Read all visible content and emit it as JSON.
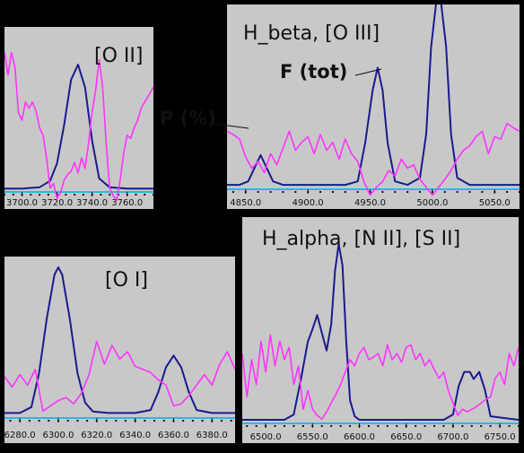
{
  "annotations": {
    "f_tot": "F (tot)",
    "p_pct": "P (%)"
  },
  "colors": {
    "flux": "#1a1a8c",
    "polarization": "#ff33ff",
    "baseline": "#22bbe6",
    "panel_bg": "#c8c8c8"
  },
  "chart_data": [
    {
      "type": "line",
      "title": "[O II]",
      "xlim": [
        3690,
        3775
      ],
      "xticks": [
        "3700.0",
        "3720.0",
        "3740.0",
        "3760.0"
      ],
      "xtick_values": [
        3700,
        3720,
        3740,
        3760
      ],
      "series": [
        {
          "role": "flux",
          "x": [
            3690,
            3700,
            3710,
            3716,
            3720,
            3724,
            3728,
            3732,
            3736,
            3740,
            3744,
            3750,
            3760,
            3775
          ],
          "y": [
            0.02,
            0.02,
            0.03,
            0.08,
            0.22,
            0.52,
            0.88,
            1.0,
            0.82,
            0.4,
            0.1,
            0.03,
            0.02,
            0.02
          ]
        },
        {
          "role": "polarization",
          "x": [
            3690,
            3692,
            3694,
            3696,
            3698,
            3700,
            3702,
            3704,
            3706,
            3708,
            3710,
            3712,
            3714,
            3716,
            3718,
            3720,
            3722,
            3724,
            3726,
            3728,
            3730,
            3732,
            3734,
            3736,
            3738,
            3740,
            3742,
            3744,
            3746,
            3748,
            3750,
            3752,
            3754,
            3756,
            3758,
            3760,
            3762,
            3764,
            3766,
            3768,
            3770,
            3772,
            3775
          ],
          "y": [
            0.95,
            0.8,
            0.95,
            0.85,
            0.55,
            0.5,
            0.62,
            0.58,
            0.62,
            0.56,
            0.45,
            0.4,
            0.25,
            0.05,
            0.08,
            -0.02,
            0.02,
            0.1,
            0.14,
            0.16,
            0.22,
            0.15,
            0.25,
            0.18,
            0.35,
            0.55,
            0.7,
            0.9,
            0.72,
            0.35,
            0.05,
            0.0,
            -0.03,
            0.1,
            0.28,
            0.4,
            0.38,
            0.45,
            0.5,
            0.58,
            0.62,
            0.66,
            0.72
          ]
        }
      ]
    },
    {
      "type": "line",
      "title": "H_beta,  [O III]",
      "xlim": [
        4835,
        5070
      ],
      "xticks": [
        "4850.0",
        "4900.0",
        "4950.0",
        "5000.0",
        "5050.0"
      ],
      "xtick_values": [
        4850,
        4900,
        4950,
        5000,
        5050
      ],
      "series": [
        {
          "role": "flux",
          "x": [
            4835,
            4845,
            4852,
            4858,
            4862,
            4866,
            4872,
            4880,
            4900,
            4930,
            4940,
            4946,
            4952,
            4956,
            4960,
            4964,
            4970,
            4980,
            4990,
            4995,
            4999,
            5003,
            5007,
            5011,
            5015,
            5020,
            5030,
            5070
          ],
          "y": [
            0.01,
            0.01,
            0.03,
            0.12,
            0.18,
            0.12,
            0.03,
            0.01,
            0.01,
            0.01,
            0.03,
            0.25,
            0.55,
            0.68,
            0.55,
            0.25,
            0.03,
            0.01,
            0.05,
            0.3,
            0.8,
            1.05,
            1.05,
            0.8,
            0.3,
            0.05,
            0.01,
            0.01
          ]
        },
        {
          "role": "polarization",
          "x": [
            4835,
            4840,
            4845,
            4850,
            4855,
            4860,
            4865,
            4870,
            4875,
            4880,
            4885,
            4890,
            4895,
            4900,
            4905,
            4910,
            4915,
            4920,
            4925,
            4930,
            4935,
            4940,
            4945,
            4950,
            4955,
            4960,
            4965,
            4970,
            4975,
            4980,
            4985,
            4990,
            4995,
            5000,
            5005,
            5010,
            5015,
            5020,
            5025,
            5030,
            5035,
            5040,
            5045,
            5050,
            5055,
            5060,
            5065,
            5070
          ],
          "y": [
            0.55,
            0.52,
            0.48,
            0.32,
            0.22,
            0.28,
            0.18,
            0.35,
            0.25,
            0.4,
            0.55,
            0.38,
            0.45,
            0.5,
            0.35,
            0.52,
            0.38,
            0.45,
            0.3,
            0.48,
            0.35,
            0.28,
            0.1,
            -0.02,
            0.05,
            0.1,
            0.2,
            0.15,
            0.3,
            0.22,
            0.25,
            0.12,
            0.05,
            -0.02,
            0.05,
            0.12,
            0.2,
            0.3,
            0.38,
            0.42,
            0.5,
            0.55,
            0.35,
            0.5,
            0.48,
            0.62,
            0.58,
            0.55
          ]
        }
      ]
    },
    {
      "type": "line",
      "title": "[O I]",
      "xlim": [
        6272,
        6392
      ],
      "xticks": [
        "6280.0",
        "6300.0",
        "6320.0",
        "6340.0",
        "6360.0",
        "6380.0"
      ],
      "xtick_values": [
        6280,
        6300,
        6320,
        6340,
        6360,
        6380
      ],
      "series": [
        {
          "role": "flux",
          "x": [
            6272,
            6280,
            6286,
            6290,
            6294,
            6298,
            6300,
            6302,
            6306,
            6310,
            6314,
            6318,
            6326,
            6340,
            6348,
            6352,
            6356,
            6360,
            6364,
            6368,
            6372,
            6380,
            6392
          ],
          "y": [
            0.01,
            0.01,
            0.05,
            0.28,
            0.65,
            0.95,
            1.0,
            0.95,
            0.65,
            0.28,
            0.08,
            0.02,
            0.01,
            0.01,
            0.03,
            0.15,
            0.32,
            0.4,
            0.32,
            0.15,
            0.03,
            0.01,
            0.01
          ]
        },
        {
          "role": "polarization",
          "x": [
            6272,
            6276,
            6280,
            6284,
            6288,
            6292,
            6296,
            6300,
            6304,
            6308,
            6312,
            6316,
            6320,
            6324,
            6328,
            6332,
            6336,
            6340,
            6344,
            6348,
            6352,
            6356,
            6360,
            6364,
            6368,
            6372,
            6376,
            6380,
            6384,
            6388,
            6392
          ],
          "y": [
            0.38,
            0.28,
            0.4,
            0.3,
            0.45,
            0.05,
            0.1,
            0.15,
            0.18,
            0.12,
            0.22,
            0.4,
            0.72,
            0.5,
            0.68,
            0.55,
            0.62,
            0.48,
            0.45,
            0.42,
            0.35,
            0.3,
            0.1,
            0.12,
            0.2,
            0.3,
            0.4,
            0.3,
            0.5,
            0.62,
            0.45
          ]
        }
      ]
    },
    {
      "type": "line",
      "title": "H_alpha, [N II], [S II]",
      "xlim": [
        6475,
        6770
      ],
      "xticks": [
        "6500.0",
        "6550.0",
        "6600.0",
        "6650.0",
        "6700.0",
        "6750.0"
      ],
      "xtick_values": [
        6500,
        6550,
        6600,
        6650,
        6700,
        6750
      ],
      "series": [
        {
          "role": "flux",
          "x": [
            6475,
            6520,
            6530,
            6538,
            6545,
            6550,
            6555,
            6560,
            6565,
            6570,
            6574,
            6578,
            6582,
            6586,
            6590,
            6595,
            6600,
            6620,
            6690,
            6700,
            6706,
            6712,
            6718,
            6722,
            6728,
            6734,
            6740,
            6770
          ],
          "y": [
            0.01,
            0.01,
            0.04,
            0.25,
            0.45,
            0.52,
            0.6,
            0.5,
            0.4,
            0.55,
            0.85,
            1.0,
            0.88,
            0.45,
            0.12,
            0.03,
            0.01,
            0.01,
            0.01,
            0.04,
            0.2,
            0.28,
            0.28,
            0.24,
            0.28,
            0.18,
            0.03,
            0.01
          ]
        },
        {
          "role": "polarization",
          "x": [
            6475,
            6480,
            6485,
            6490,
            6495,
            6500,
            6505,
            6510,
            6515,
            6520,
            6525,
            6530,
            6535,
            6540,
            6545,
            6550,
            6555,
            6560,
            6565,
            6570,
            6575,
            6580,
            6585,
            6590,
            6595,
            6600,
            6605,
            6610,
            6615,
            6620,
            6625,
            6630,
            6635,
            6640,
            6645,
            6650,
            6655,
            6660,
            6665,
            6670,
            6675,
            6680,
            6685,
            6690,
            6695,
            6700,
            6705,
            6710,
            6715,
            6720,
            6725,
            6730,
            6735,
            6740,
            6745,
            6750,
            6755,
            6760,
            6765,
            6770
          ],
          "y": [
            0.55,
            0.2,
            0.5,
            0.3,
            0.65,
            0.4,
            0.7,
            0.45,
            0.65,
            0.5,
            0.6,
            0.3,
            0.45,
            0.1,
            0.25,
            0.1,
            0.05,
            0.02,
            0.08,
            0.15,
            0.22,
            0.3,
            0.4,
            0.5,
            0.45,
            0.55,
            0.6,
            0.5,
            0.52,
            0.55,
            0.45,
            0.62,
            0.5,
            0.55,
            0.48,
            0.6,
            0.62,
            0.5,
            0.55,
            0.45,
            0.5,
            0.42,
            0.35,
            0.4,
            0.25,
            0.15,
            0.05,
            0.1,
            0.08,
            0.1,
            0.12,
            0.15,
            0.18,
            0.2,
            0.35,
            0.4,
            0.3,
            0.55,
            0.45,
            0.6
          ]
        }
      ]
    }
  ]
}
